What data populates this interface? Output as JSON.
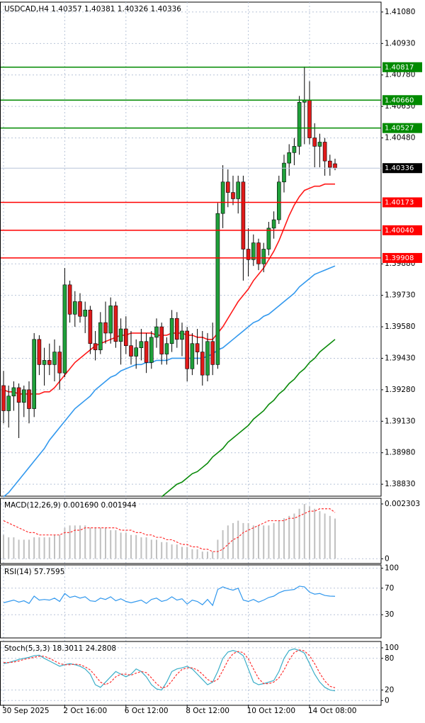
{
  "chart_data": [
    {
      "type": "candlestick",
      "title": "USDCAD,H4  1.40357 1.40381 1.40326 1.40336",
      "categories": [
        "30 Sep 2025",
        null,
        null,
        null,
        null,
        null,
        null,
        null,
        null,
        null,
        null,
        null,
        "2 Oct 16:00",
        null,
        null,
        null,
        null,
        null,
        null,
        null,
        null,
        null,
        null,
        null,
        "6 Oct 12:00",
        null,
        null,
        null,
        null,
        null,
        null,
        null,
        null,
        null,
        null,
        null,
        "8 Oct 12:00",
        null,
        null,
        null,
        null,
        null,
        null,
        null,
        null,
        null,
        null,
        null,
        "10 Oct 12:00",
        null,
        null,
        null,
        null,
        null,
        null,
        null,
        null,
        null,
        null,
        null,
        "14 Oct 08:00",
        null,
        null,
        null,
        null,
        null
      ],
      "open": [
        1.393,
        1.3918,
        1.3925,
        1.3929,
        1.3922,
        1.3928,
        1.3919,
        1.3952,
        1.394,
        1.3942,
        1.394,
        1.3946,
        1.3936,
        1.3978,
        1.3964,
        1.397,
        1.3963,
        1.3966,
        1.395,
        1.3947,
        1.396,
        1.3955,
        1.3968,
        1.3951,
        1.3957,
        1.3949,
        1.3944,
        1.3948,
        1.3951,
        1.3941,
        1.3953,
        1.3958,
        1.3945,
        1.395,
        1.3962,
        1.3952,
        1.3956,
        1.3938,
        1.395,
        1.3946,
        1.3935,
        1.3951,
        1.394,
        1.4012,
        1.4027,
        1.4022,
        1.4019,
        1.4027,
        1.3995,
        1.399,
        1.3998,
        1.3988,
        1.3995,
        1.4005,
        1.4009,
        1.4027,
        1.4036,
        1.4041,
        1.4044,
        1.4065,
        1.4066,
        1.4048,
        1.4044,
        1.4046,
        1.4037,
        1.40357
      ],
      "high": [
        1.3937,
        1.393,
        1.3932,
        1.3931,
        1.393,
        1.3932,
        1.3955,
        1.3954,
        1.3948,
        1.395,
        1.3952,
        1.3949,
        1.3986,
        1.398,
        1.3975,
        1.3974,
        1.397,
        1.3968,
        1.3956,
        1.3965,
        1.397,
        1.3972,
        1.397,
        1.3962,
        1.3963,
        1.3956,
        1.3952,
        1.3957,
        1.3955,
        1.3956,
        1.3962,
        1.396,
        1.3953,
        1.3966,
        1.3965,
        1.396,
        1.3958,
        1.3955,
        1.3957,
        1.3956,
        1.3955,
        1.396,
        1.4017,
        1.4035,
        1.4033,
        1.403,
        1.403,
        1.403,
        1.4005,
        1.4002,
        1.4,
        1.3998,
        1.4008,
        1.4013,
        1.403,
        1.404,
        1.4045,
        1.4048,
        1.4068,
        1.4082,
        1.4075,
        1.4055,
        1.405,
        1.4048,
        1.404,
        1.40381
      ],
      "low": [
        1.3912,
        1.391,
        1.3918,
        1.3905,
        1.3915,
        1.3912,
        1.3915,
        1.3935,
        1.393,
        1.3935,
        1.3932,
        1.3928,
        1.3934,
        1.396,
        1.3958,
        1.396,
        1.3955,
        1.3945,
        1.3942,
        1.3945,
        1.395,
        1.395,
        1.3948,
        1.394,
        1.3945,
        1.394,
        1.3938,
        1.3942,
        1.3936,
        1.3938,
        1.3948,
        1.394,
        1.394,
        1.3946,
        1.3948,
        1.3944,
        1.3932,
        1.3935,
        1.394,
        1.393,
        1.3932,
        1.3935,
        1.3938,
        1.4005,
        1.4015,
        1.4016,
        1.4012,
        1.398,
        1.3982,
        1.3987,
        1.3985,
        1.3984,
        1.3992,
        1.4,
        1.4007,
        1.4022,
        1.403,
        1.4035,
        1.404,
        1.4045,
        1.4045,
        1.4034,
        1.4034,
        1.403,
        1.403,
        1.40326
      ],
      "close": [
        1.3918,
        1.3925,
        1.3929,
        1.3922,
        1.3928,
        1.3919,
        1.3952,
        1.394,
        1.3942,
        1.394,
        1.3946,
        1.3936,
        1.3978,
        1.3964,
        1.397,
        1.3963,
        1.3966,
        1.395,
        1.3947,
        1.396,
        1.3955,
        1.3968,
        1.3951,
        1.3957,
        1.3949,
        1.3944,
        1.3948,
        1.3951,
        1.3941,
        1.3953,
        1.3958,
        1.3945,
        1.395,
        1.3962,
        1.3952,
        1.3956,
        1.3938,
        1.395,
        1.3946,
        1.3935,
        1.3951,
        1.394,
        1.4012,
        1.4027,
        1.4022,
        1.4019,
        1.4027,
        1.3995,
        1.399,
        1.3998,
        1.3988,
        1.3995,
        1.4005,
        1.4009,
        1.4027,
        1.4036,
        1.4041,
        1.4044,
        1.4065,
        1.4066,
        1.4048,
        1.4044,
        1.4046,
        1.4037,
        1.4034,
        1.40336
      ],
      "up_color": "#1fa03a",
      "down_color": "#e01a1a",
      "lines": [
        {
          "color": "#ff1a1a",
          "values": [
            1.3928,
            1.3927,
            1.3927,
            1.3926,
            1.3926,
            1.3926,
            1.3926,
            1.3926,
            1.3927,
            1.3927,
            1.3929,
            1.3932,
            1.3935,
            1.3938,
            1.3941,
            1.3943,
            1.3945,
            1.3947,
            1.3949,
            1.395,
            1.3951,
            1.3952,
            1.3953,
            1.3954,
            1.3954,
            1.3955,
            1.3955,
            1.3955,
            1.3955,
            1.3955,
            1.3954,
            1.3954,
            1.3954,
            1.3955,
            1.3955,
            1.3955,
            1.3954,
            1.3954,
            1.3953,
            1.3953,
            1.3952,
            1.3952,
            1.3955,
            1.3958,
            1.3962,
            1.3966,
            1.397,
            1.3973,
            1.3976,
            1.398,
            1.3983,
            1.3986,
            1.399,
            1.3994,
            1.3999,
            1.4005,
            1.4011,
            1.4016,
            1.402,
            1.4023,
            1.4024,
            1.4025,
            1.4025,
            1.4026,
            1.4026,
            1.4026
          ]
        },
        {
          "color": "#3399ee",
          "values": [
            1.3877,
            1.3879,
            1.3882,
            1.3885,
            1.3888,
            1.3891,
            1.3894,
            1.3897,
            1.39,
            1.3904,
            1.3907,
            1.391,
            1.3913,
            1.3916,
            1.3919,
            1.3921,
            1.3923,
            1.3925,
            1.3928,
            1.393,
            1.3932,
            1.3934,
            1.3935,
            1.3937,
            1.3938,
            1.3939,
            1.394,
            1.394,
            1.3941,
            1.3941,
            1.3942,
            1.3942,
            1.3942,
            1.3943,
            1.3943,
            1.3943,
            1.3943,
            1.3943,
            1.3943,
            1.3943,
            1.3944,
            1.3945,
            1.3947,
            1.3948,
            1.395,
            1.3952,
            1.3954,
            1.3956,
            1.3958,
            1.396,
            1.3961,
            1.3963,
            1.3964,
            1.3966,
            1.3968,
            1.397,
            1.3972,
            1.3974,
            1.3977,
            1.3979,
            1.3981,
            1.3983,
            1.3984,
            1.3985,
            1.3986,
            1.3987
          ]
        },
        {
          "color": "#0a8a0a",
          "values": [
            null,
            null,
            null,
            null,
            null,
            null,
            null,
            null,
            null,
            null,
            null,
            null,
            null,
            null,
            null,
            null,
            null,
            null,
            null,
            null,
            null,
            null,
            null,
            null,
            null,
            null,
            null,
            null,
            null,
            null,
            null,
            1.3877,
            1.3879,
            1.3881,
            1.3883,
            1.3884,
            1.3886,
            1.3888,
            1.3889,
            1.3891,
            1.3893,
            1.3896,
            1.3898,
            1.39,
            1.3903,
            1.3905,
            1.3907,
            1.3909,
            1.3911,
            1.3914,
            1.3916,
            1.3918,
            1.3921,
            1.3923,
            1.3926,
            1.3928,
            1.3931,
            1.3933,
            1.3936,
            1.3938,
            1.3941,
            1.3943,
            1.3946,
            1.3948,
            1.395,
            1.3952
          ]
        }
      ],
      "levels": [
        {
          "value": 1.40817,
          "label": "1.40817",
          "color": "#008a00"
        },
        {
          "value": 1.4066,
          "label": "1.40660",
          "color": "#008a00"
        },
        {
          "value": 1.40527,
          "label": "1.40527",
          "color": "#008a00"
        },
        {
          "value": 1.40173,
          "label": "1.40173",
          "color": "#ff0000"
        },
        {
          "value": 1.4004,
          "label": "1.40040",
          "color": "#ff0000"
        },
        {
          "value": 1.39908,
          "label": "1.39908",
          "color": "#ff0000"
        }
      ],
      "last_price": {
        "value": 1.40336,
        "label": "1.40336"
      },
      "ylim": [
        1.38773,
        1.41127
      ],
      "yticks": [
        {
          "value": 1.4108,
          "label": "1.41080"
        },
        {
          "value": 1.4093,
          "label": "1.40930"
        },
        {
          "value": 1.4078,
          "label": "1.40780"
        },
        {
          "value": 1.4063,
          "label": "1.40630"
        },
        {
          "value": 1.4048,
          "label": "1.40480"
        },
        {
          "value": 1.3988,
          "label": "1.39880"
        },
        {
          "value": 1.3973,
          "label": "1.39730"
        },
        {
          "value": 1.3958,
          "label": "1.39580"
        },
        {
          "value": 1.3943,
          "label": "1.39430"
        },
        {
          "value": 1.3928,
          "label": "1.39280"
        },
        {
          "value": 1.3913,
          "label": "1.39130"
        },
        {
          "value": 1.3898,
          "label": "1.38980"
        },
        {
          "value": 1.3883,
          "label": "1.38830"
        }
      ],
      "grid": true
    },
    {
      "type": "macd",
      "title": "MACD(12,26,9) 0.001690 0.001944",
      "series": [
        {
          "color": "#c0c0c0",
          "values": [
            0.001,
            0.0009,
            0.0009,
            0.0008,
            0.0008,
            0.0008,
            0.0009,
            0.0009,
            0.0009,
            0.0009,
            0.001,
            0.001,
            0.0013,
            0.0014,
            0.0014,
            0.0014,
            0.0014,
            0.0013,
            0.0013,
            0.0013,
            0.0013,
            0.0012,
            0.0012,
            0.0011,
            0.0011,
            0.001,
            0.001,
            0.0009,
            0.0009,
            0.0008,
            0.0008,
            0.0007,
            0.0007,
            0.0006,
            0.0006,
            0.0005,
            0.0005,
            0.0004,
            0.0004,
            0.0003,
            0.0003,
            0.0003,
            0.0008,
            0.0012,
            0.0014,
            0.0015,
            0.0016,
            0.0015,
            0.0015,
            0.0014,
            0.0014,
            0.0014,
            0.0014,
            0.0015,
            0.0016,
            0.0017,
            0.0018,
            0.0019,
            0.0021,
            0.0023,
            0.0022,
            0.0021,
            0.002,
            0.0019,
            0.0018,
            0.00169
          ]
        },
        {
          "color": "#ff3030",
          "dashed": true,
          "values": [
            0.0016,
            0.0015,
            0.0014,
            0.0013,
            0.0012,
            0.0011,
            0.0011,
            0.001,
            0.001,
            0.001,
            0.001,
            0.001,
            0.0011,
            0.0011,
            0.0012,
            0.0012,
            0.0013,
            0.0013,
            0.0013,
            0.0013,
            0.0013,
            0.0013,
            0.0013,
            0.0012,
            0.0012,
            0.0012,
            0.0011,
            0.0011,
            0.001,
            0.001,
            0.0009,
            0.0009,
            0.0008,
            0.0008,
            0.0007,
            0.0006,
            0.0006,
            0.0005,
            0.0005,
            0.0004,
            0.0004,
            0.0003,
            0.0003,
            0.0004,
            0.0006,
            0.0008,
            0.0009,
            0.0011,
            0.0012,
            0.0013,
            0.0014,
            0.0015,
            0.0016,
            0.0016,
            0.0016,
            0.0016,
            0.0017,
            0.0017,
            0.0018,
            0.0019,
            0.002,
            0.002,
            0.0021,
            0.0021,
            0.0021,
            0.001944
          ]
        }
      ],
      "ylim": [
        -0.0002,
        0.00254
      ],
      "yticks": [
        {
          "value": 0.002303,
          "label": "0.002303"
        },
        0
      ]
    },
    {
      "type": "rsi",
      "title": "RSI(14) 57.7595",
      "series": [
        {
          "color": "#3399ee",
          "values": [
            48,
            50,
            52,
            49,
            51,
            47,
            58,
            52,
            53,
            52,
            55,
            50,
            62,
            56,
            58,
            55,
            57,
            51,
            50,
            55,
            53,
            57,
            51,
            54,
            50,
            48,
            50,
            52,
            47,
            53,
            55,
            50,
            52,
            57,
            52,
            54,
            46,
            52,
            50,
            45,
            53,
            44,
            68,
            72,
            69,
            67,
            70,
            52,
            50,
            53,
            49,
            52,
            56,
            58,
            63,
            66,
            67,
            68,
            73,
            72,
            64,
            61,
            62,
            59,
            58,
            57.7595
          ]
        }
      ],
      "ylim": [
        -5,
        105
      ],
      "yticks": [
        100,
        70,
        30
      ]
    },
    {
      "type": "stoch",
      "title": "Stoch(5,3,3) 18.3011 24.2808",
      "series": [
        {
          "color": "#3aaec8",
          "values": [
            70,
            72,
            75,
            78,
            80,
            82,
            85,
            86,
            80,
            75,
            70,
            65,
            68,
            70,
            68,
            65,
            60,
            50,
            30,
            25,
            35,
            45,
            55,
            50,
            45,
            50,
            60,
            55,
            45,
            30,
            22,
            20,
            35,
            55,
            60,
            62,
            65,
            60,
            50,
            40,
            30,
            35,
            55,
            80,
            92,
            95,
            92,
            85,
            60,
            35,
            30,
            32,
            35,
            38,
            55,
            80,
            95,
            98,
            95,
            90,
            70,
            50,
            35,
            25,
            20,
            18.3011
          ]
        },
        {
          "color": "#ff3030",
          "dashed": true,
          "values": [
            72,
            72,
            73,
            75,
            78,
            80,
            82,
            84,
            84,
            80,
            75,
            70,
            68,
            68,
            69,
            68,
            64,
            58,
            47,
            35,
            30,
            35,
            45,
            50,
            50,
            48,
            52,
            55,
            53,
            43,
            32,
            24,
            26,
            37,
            50,
            59,
            62,
            62,
            58,
            50,
            40,
            35,
            40,
            57,
            76,
            89,
            93,
            91,
            79,
            60,
            42,
            32,
            32,
            35,
            43,
            58,
            77,
            91,
            96,
            94,
            85,
            70,
            52,
            37,
            27,
            24.2808
          ]
        }
      ],
      "ylim": [
        -9,
        112
      ],
      "yticks": [
        100,
        80,
        20,
        0
      ]
    }
  ]
}
